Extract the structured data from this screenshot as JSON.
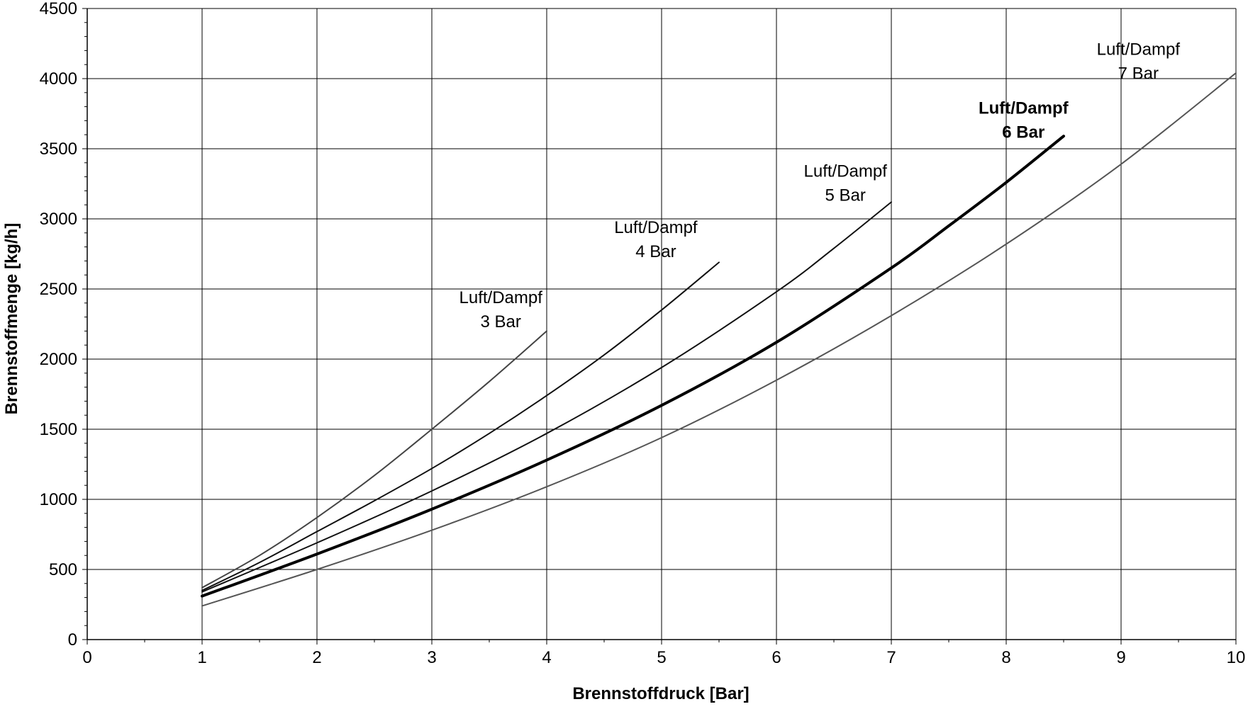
{
  "chart_data": {
    "type": "line",
    "title": "",
    "xlabel": "Brennstoffdruck [Bar]",
    "ylabel": "Brennstoffmenge [kg/h]",
    "xlim": [
      0,
      10
    ],
    "ylim": [
      0,
      4500
    ],
    "x_ticks": [
      "0",
      "1",
      "2",
      "3",
      "4",
      "5",
      "6",
      "7",
      "8",
      "9",
      "10"
    ],
    "y_ticks": [
      "0",
      "500",
      "1000",
      "1500",
      "2000",
      "2500",
      "3000",
      "3500",
      "4000",
      "4500"
    ],
    "grid": true,
    "series": [
      {
        "label_line1": "Luft/Dampf",
        "label_line2": "3 Bar",
        "bold": false,
        "color": "#444444",
        "x": [
          1,
          1.5,
          2,
          2.5,
          3,
          3.5,
          4
        ],
        "y": [
          370,
          600,
          870,
          1170,
          1500,
          1840,
          2200
        ]
      },
      {
        "label_line1": "Luft/Dampf",
        "label_line2": "4 Bar",
        "bold": false,
        "color": "#111111",
        "x": [
          1,
          1.5,
          2,
          2.5,
          3,
          3.5,
          4,
          4.5,
          5,
          5.5
        ],
        "y": [
          350,
          550,
          770,
          990,
          1220,
          1470,
          1740,
          2030,
          2350,
          2690
        ]
      },
      {
        "label_line1": "Luft/Dampf",
        "label_line2": "5 Bar",
        "bold": false,
        "color": "#111111",
        "x": [
          1,
          2,
          3,
          4,
          5,
          6,
          6.5,
          7
        ],
        "y": [
          340,
          690,
          1060,
          1470,
          1940,
          2480,
          2790,
          3120
        ]
      },
      {
        "label_line1": "Luft/Dampf",
        "label_line2": "6 Bar",
        "bold": true,
        "color": "#000000",
        "x": [
          1,
          2,
          3,
          4,
          5,
          6,
          7,
          7.5,
          8,
          8.5
        ],
        "y": [
          310,
          610,
          930,
          1280,
          1670,
          2120,
          2650,
          2950,
          3260,
          3590
        ]
      },
      {
        "label_line1": "Luft/Dampf",
        "label_line2": "7 Bar",
        "bold": false,
        "color": "#555555",
        "x": [
          1,
          2,
          3,
          4,
          5,
          6,
          7,
          8,
          9,
          10
        ],
        "y": [
          240,
          500,
          780,
          1090,
          1440,
          1850,
          2310,
          2820,
          3390,
          4040
        ]
      }
    ]
  }
}
